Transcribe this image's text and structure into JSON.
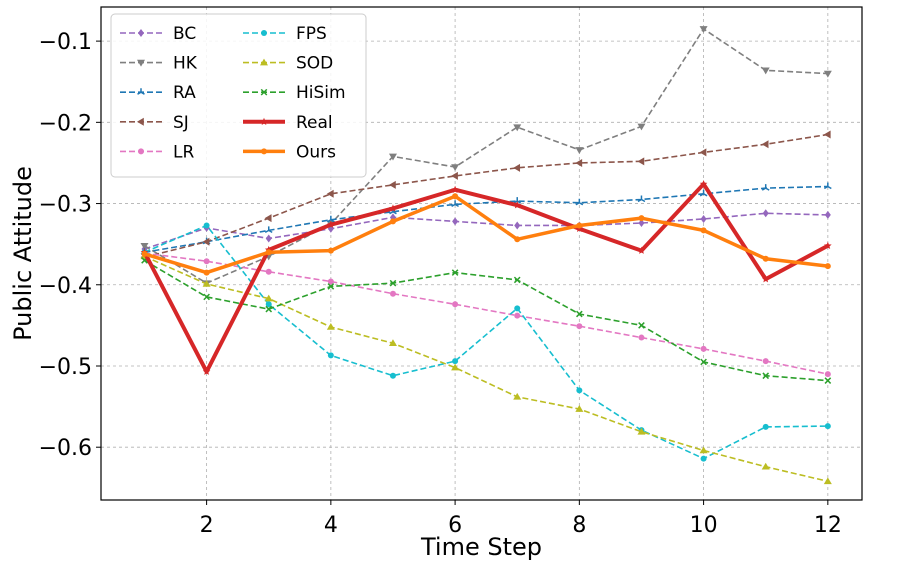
{
  "chart_data": {
    "type": "line",
    "title": "",
    "xlabel": "Time Step",
    "ylabel": "Public Attitude",
    "xlim": [
      0.3,
      12.55
    ],
    "ylim": [
      -0.665,
      -0.058
    ],
    "xticks": [
      2,
      4,
      6,
      8,
      10,
      12
    ],
    "xtick_labels": [
      "2",
      "4",
      "6",
      "8",
      "10",
      "12"
    ],
    "yticks": [
      -0.1,
      -0.2,
      -0.3,
      -0.4,
      -0.5,
      -0.6
    ],
    "ytick_labels": [
      "−0.1",
      "−0.2",
      "−0.3",
      "−0.4",
      "−0.5",
      "−0.6"
    ],
    "grid": true,
    "legend_position": "top-left",
    "x": [
      1,
      2,
      3,
      4,
      5,
      6,
      7,
      8,
      9,
      10,
      11,
      12
    ],
    "series": [
      {
        "name": "BC",
        "color": "#9467bd",
        "marker": "diamond",
        "dashed": true,
        "width": 1.6,
        "values": [
          -0.356,
          -0.33,
          -0.343,
          -0.331,
          -0.317,
          -0.322,
          -0.327,
          -0.327,
          -0.324,
          -0.319,
          -0.312,
          -0.314
        ]
      },
      {
        "name": "HK",
        "color": "#7f7f7f",
        "marker": "triangle-down",
        "dashed": true,
        "width": 1.6,
        "values": [
          -0.352,
          -0.398,
          -0.365,
          -0.325,
          -0.242,
          -0.255,
          -0.206,
          -0.234,
          -0.205,
          -0.085,
          -0.136,
          -0.14
        ]
      },
      {
        "name": "RA",
        "color": "#1f77b4",
        "marker": "tri",
        "dashed": true,
        "width": 1.6,
        "values": [
          -0.36,
          -0.347,
          -0.333,
          -0.32,
          -0.31,
          -0.301,
          -0.297,
          -0.299,
          -0.295,
          -0.288,
          -0.281,
          -0.279
        ]
      },
      {
        "name": "SJ",
        "color": "#8c564b",
        "marker": "triangle-left",
        "dashed": true,
        "width": 1.6,
        "values": [
          -0.366,
          -0.347,
          -0.318,
          -0.288,
          -0.277,
          -0.266,
          -0.256,
          -0.25,
          -0.248,
          -0.237,
          -0.227,
          -0.215
        ]
      },
      {
        "name": "LR",
        "color": "#e377c2",
        "marker": "circle",
        "dashed": true,
        "width": 1.6,
        "values": [
          -0.361,
          -0.371,
          -0.384,
          -0.396,
          -0.411,
          -0.424,
          -0.438,
          -0.451,
          -0.465,
          -0.479,
          -0.494,
          -0.51
        ]
      },
      {
        "name": "FPS",
        "color": "#17becf",
        "marker": "circle",
        "dashed": true,
        "width": 1.6,
        "values": [
          -0.36,
          -0.327,
          -0.424,
          -0.487,
          -0.512,
          -0.494,
          -0.429,
          -0.53,
          -0.579,
          -0.614,
          -0.575,
          -0.574
        ]
      },
      {
        "name": "SOD",
        "color": "#bcbd22",
        "marker": "triangle-up",
        "dashed": true,
        "width": 1.6,
        "values": [
          -0.365,
          -0.399,
          -0.417,
          -0.452,
          -0.472,
          -0.502,
          -0.538,
          -0.553,
          -0.581,
          -0.604,
          -0.624,
          -0.642
        ]
      },
      {
        "name": "HiSim",
        "color": "#2ca02c",
        "marker": "x",
        "dashed": true,
        "width": 1.6,
        "values": [
          -0.37,
          -0.415,
          -0.43,
          -0.402,
          -0.398,
          -0.385,
          -0.394,
          -0.436,
          -0.45,
          -0.495,
          -0.512,
          -0.518
        ]
      },
      {
        "name": "Real",
        "color": "#d62728",
        "marker": "star",
        "dashed": false,
        "width": 4,
        "values": [
          -0.36,
          -0.507,
          -0.357,
          -0.326,
          -0.306,
          -0.283,
          -0.302,
          -0.331,
          -0.358,
          -0.276,
          -0.393,
          -0.352
        ]
      },
      {
        "name": "Ours",
        "color": "#ff7f0e",
        "marker": "circle",
        "dashed": false,
        "width": 3.5,
        "values": [
          -0.362,
          -0.385,
          -0.36,
          -0.358,
          -0.322,
          -0.291,
          -0.344,
          -0.327,
          -0.318,
          -0.333,
          -0.368,
          -0.377
        ]
      }
    ]
  }
}
